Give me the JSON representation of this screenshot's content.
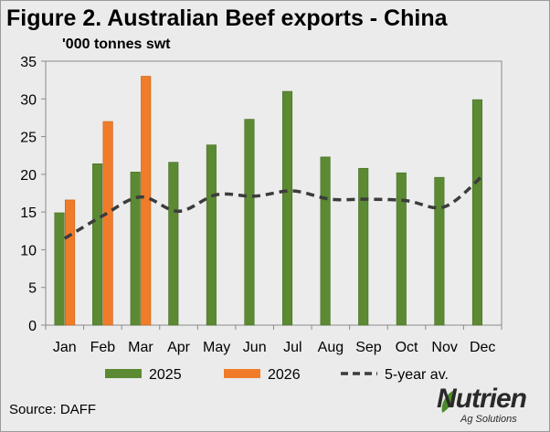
{
  "title": "Figure 2. Australian Beef exports - China",
  "unit_label": "'000 tonnes swt",
  "source": "Source: DAFF",
  "logo": {
    "word": "Nutrien",
    "sub": "Ag Solutions",
    "leaf_color": "#4a8a2c"
  },
  "chart_data": {
    "type": "bar",
    "categories": [
      "Jan",
      "Feb",
      "Mar",
      "Apr",
      "May",
      "Jun",
      "Jul",
      "Aug",
      "Sep",
      "Oct",
      "Nov",
      "Dec"
    ],
    "ylim": [
      0,
      35
    ],
    "yticks": [
      0,
      5,
      10,
      15,
      20,
      25,
      30,
      35
    ],
    "grid": false,
    "legend_position": "bottom",
    "series": [
      {
        "name": "2025",
        "type": "bar",
        "color": "#5b8a32",
        "values": [
          14.9,
          21.4,
          20.3,
          21.6,
          23.9,
          27.3,
          31.0,
          22.3,
          20.8,
          20.2,
          19.6,
          29.9
        ]
      },
      {
        "name": "2026",
        "type": "bar",
        "color": "#f07c2a",
        "values": [
          16.6,
          27.0,
          33.0,
          null,
          null,
          null,
          null,
          null,
          null,
          null,
          null,
          null
        ]
      },
      {
        "name": "5-year av.",
        "type": "line",
        "color": "#3c3c3c",
        "style": "dashed",
        "values": [
          11.5,
          14.5,
          17.0,
          15.1,
          17.3,
          17.1,
          17.8,
          16.7,
          16.7,
          16.5,
          15.7,
          19.8
        ]
      }
    ]
  }
}
